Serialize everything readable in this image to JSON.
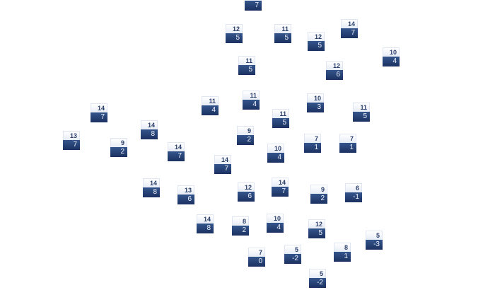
{
  "nodes": [
    {
      "top": "",
      "bottom": "7"
    },
    {
      "top": "12",
      "bottom": "5"
    },
    {
      "top": "11",
      "bottom": "5"
    },
    {
      "top": "12",
      "bottom": "5"
    },
    {
      "top": "14",
      "bottom": "7"
    },
    {
      "top": "10",
      "bottom": "4"
    },
    {
      "top": "11",
      "bottom": "5"
    },
    {
      "top": "12",
      "bottom": "6"
    },
    {
      "top": "11",
      "bottom": "4"
    },
    {
      "top": "11",
      "bottom": "4"
    },
    {
      "top": "10",
      "bottom": "3"
    },
    {
      "top": "11",
      "bottom": "5"
    },
    {
      "top": "11",
      "bottom": "5"
    },
    {
      "top": "14",
      "bottom": "7"
    },
    {
      "top": "14",
      "bottom": "8"
    },
    {
      "top": "13",
      "bottom": "7"
    },
    {
      "top": "9",
      "bottom": "2"
    },
    {
      "top": "9",
      "bottom": "2"
    },
    {
      "top": "14",
      "bottom": "7"
    },
    {
      "top": "10",
      "bottom": "4"
    },
    {
      "top": "7",
      "bottom": "1"
    },
    {
      "top": "7",
      "bottom": "1"
    },
    {
      "top": "14",
      "bottom": "7"
    },
    {
      "top": "14",
      "bottom": "8"
    },
    {
      "top": "13",
      "bottom": "6"
    },
    {
      "top": "12",
      "bottom": "6"
    },
    {
      "top": "14",
      "bottom": "7"
    },
    {
      "top": "9",
      "bottom": "2"
    },
    {
      "top": "6",
      "bottom": "-1"
    },
    {
      "top": "14",
      "bottom": "8"
    },
    {
      "top": "8",
      "bottom": "2"
    },
    {
      "top": "10",
      "bottom": "4"
    },
    {
      "top": "12",
      "bottom": "5"
    },
    {
      "top": "5",
      "bottom": "-3"
    },
    {
      "top": "8",
      "bottom": "1"
    },
    {
      "top": "7",
      "bottom": "0"
    },
    {
      "top": "5",
      "bottom": "-2"
    },
    {
      "top": "5",
      "bottom": "-2"
    }
  ]
}
